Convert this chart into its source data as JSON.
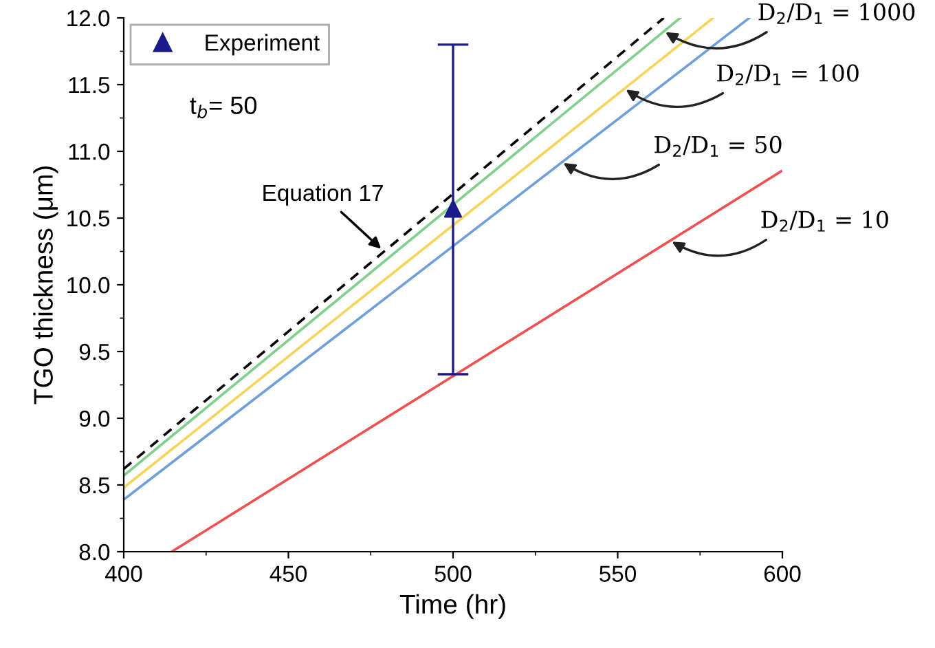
{
  "chart_data": {
    "type": "line",
    "xlabel": "Time (hr)",
    "ylabel": "TGO thickness (μm)",
    "xlim": [
      400,
      600
    ],
    "ylim": [
      8.0,
      12.0
    ],
    "xticks": [
      400,
      450,
      500,
      550,
      600
    ],
    "yticks": [
      {
        "value": 8.0,
        "label": "8.0"
      },
      {
        "value": 8.5,
        "label": "8.5"
      },
      {
        "value": 9.0,
        "label": "9.0"
      },
      {
        "value": 9.5,
        "label": "9.5"
      },
      {
        "value": 10.0,
        "label": "10.0"
      },
      {
        "value": 10.5,
        "label": "10.5"
      },
      {
        "value": 11.0,
        "label": "11.0"
      },
      {
        "value": 11.5,
        "label": "11.5"
      },
      {
        "value": 12.0,
        "label": "12.0"
      }
    ],
    "grid": false,
    "legend": "top left",
    "series": [
      {
        "color": "#000000",
        "line_style": "dashed",
        "x": [
          400,
          564
        ],
        "values": [
          8.62,
          12.0
        ]
      },
      {
        "color": "#7fd08a",
        "line_style": "solid",
        "x": [
          400,
          569
        ],
        "values": [
          8.57,
          12.0
        ]
      },
      {
        "color": "#f5d45a",
        "line_style": "solid",
        "x": [
          400,
          579
        ],
        "values": [
          8.48,
          12.0
        ]
      },
      {
        "color": "#6f9fd8",
        "line_style": "solid",
        "x": [
          400,
          590
        ],
        "values": [
          8.39,
          12.0
        ]
      },
      {
        "color": "#f05050",
        "line_style": "solid",
        "x": [
          414.6,
          599.6
        ],
        "values": [
          8.0,
          10.85
        ]
      },
      {
        "type": "scatter",
        "name": "Experiment",
        "color": "#1a1a8c",
        "marker": "triangle",
        "x": [
          500
        ],
        "values": [
          10.57
        ],
        "errors": [
          [
            9.33,
            11.8
          ]
        ]
      }
    ],
    "annotations": [
      {
        "text": "t$_{b}$= 50"
      },
      {
        "text": "Equation 17",
        "x": 479,
        "y": 10.25
      },
      {
        "text": "D$_{2}$/D$_{1}$ = 1000",
        "x": 564,
        "y": 11.9
      },
      {
        "text": "D$_{2}$/D$_{1}$ = 100",
        "x": 552,
        "y": 11.47
      },
      {
        "text": "D$_{2}$/D$_{1}$ = 50",
        "x": 533,
        "y": 10.92
      },
      {
        "text": "D$_{2}$/D$_{1}$ = 10",
        "x": 566,
        "y": 10.33
      }
    ]
  }
}
